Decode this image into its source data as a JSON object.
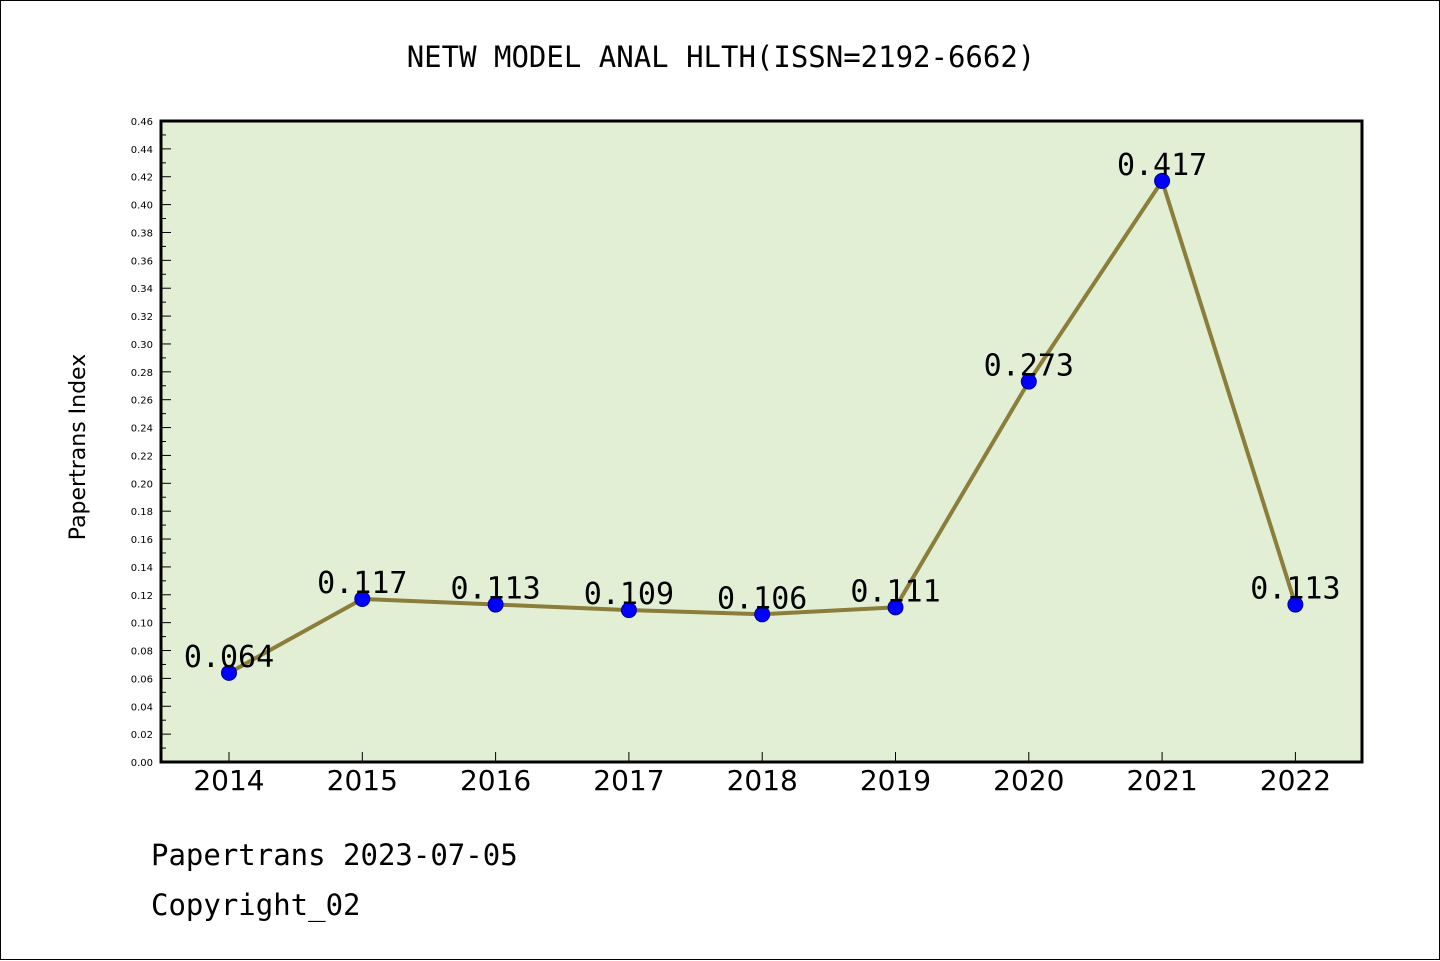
{
  "chart_data": {
    "type": "line",
    "title": "NETW MODEL ANAL HLTH(ISSN=2192-6662)",
    "ylabel": "Papertrans Index",
    "xlabel": "",
    "categories": [
      "2014",
      "2015",
      "2016",
      "2017",
      "2018",
      "2019",
      "2020",
      "2021",
      "2022"
    ],
    "values": [
      0.064,
      0.117,
      0.113,
      0.109,
      0.106,
      0.111,
      0.273,
      0.417,
      0.113
    ],
    "data_labels": [
      "0.064",
      "0.117",
      "0.113",
      "0.109",
      "0.106",
      "0.111",
      "0.273",
      "0.417",
      "0.113"
    ],
    "ylim": [
      0,
      0.46
    ],
    "yticks": [
      "0.00",
      "0.02",
      "0.04",
      "0.06",
      "0.08",
      "0.10",
      "0.12",
      "0.14",
      "0.16",
      "0.18",
      "0.20",
      "0.22",
      "0.24",
      "0.26",
      "0.28",
      "0.30",
      "0.32",
      "0.34",
      "0.36",
      "0.38",
      "0.40",
      "0.42",
      "0.44",
      "0.46"
    ],
    "grid": false,
    "colors": {
      "plot_background": "#e2efd5",
      "line": "#8b7d3a",
      "marker": "#0000ff",
      "marker_edge": "#00008b"
    }
  },
  "footer": {
    "source": "Papertrans 2023-07-05",
    "copyright": "Copyright_02"
  }
}
